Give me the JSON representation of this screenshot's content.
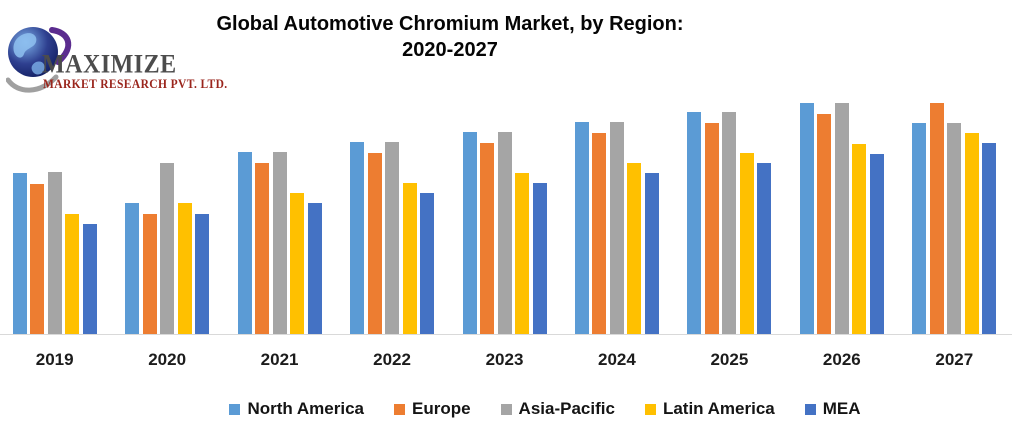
{
  "logo": {
    "brand": "MAXIMIZE",
    "subtitle": "MARKET RESEARCH PVT. LTD.",
    "brand_color": "#4c4c4c",
    "subtitle_color": "#9a251c",
    "globe_color": "#16216b",
    "continent_color": "#8fc1f0",
    "ring_purple": "#5b2c8f",
    "ring_gray": "#a0a0a0"
  },
  "title": {
    "line1": "Global Automotive Chromium Market, by Region:",
    "line2": "2020-2027",
    "color": "#050505"
  },
  "chart_data": {
    "type": "bar",
    "title": "Global Automotive Chromium Market, by Region: 2020-2027",
    "categories": [
      "2019",
      "2020",
      "2021",
      "2022",
      "2023",
      "2024",
      "2025",
      "2026",
      "2027"
    ],
    "series": [
      {
        "name": "North America",
        "color": "#5B9BD5",
        "values": [
          161,
          131,
          182,
          192,
          202,
          212,
          222,
          231,
          211
        ]
      },
      {
        "name": "Europe",
        "color": "#ED7D31",
        "values": [
          150,
          120,
          171,
          181,
          191,
          201,
          211,
          220,
          231
        ]
      },
      {
        "name": "Asia-Pacific",
        "color": "#A5A5A5",
        "values": [
          162,
          171,
          182,
          192,
          202,
          212,
          222,
          231,
          211
        ]
      },
      {
        "name": "Latin America",
        "color": "#FFC000",
        "values": [
          120,
          131,
          141,
          151,
          161,
          171,
          181,
          190,
          201
        ]
      },
      {
        "name": "MEA",
        "color": "#4472C4",
        "values": [
          110,
          120,
          131,
          141,
          151,
          161,
          171,
          180,
          191
        ]
      }
    ],
    "xlabel": "",
    "ylabel": "",
    "ylim": [
      0,
      245
    ],
    "value_axis_visible": false,
    "gridlines": false,
    "legend_position": "bottom",
    "axis_line_color": "#d9d9d9",
    "category_label_color": "#1c1c1c"
  }
}
